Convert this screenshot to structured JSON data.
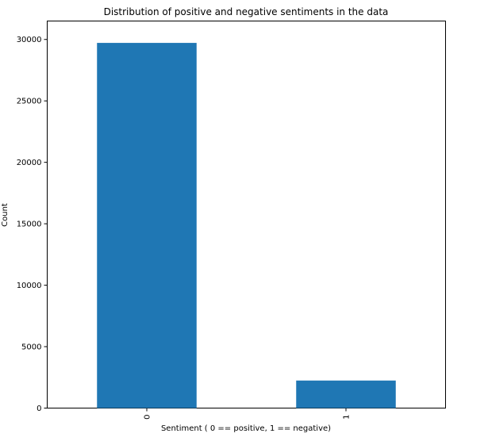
{
  "chart_data": {
    "type": "bar",
    "title": "Distribution of positive and negative sentiments in the data",
    "xlabel": "Sentiment ( 0 == positive, 1 == negative)",
    "ylabel": "Count",
    "categories": [
      "0",
      "1"
    ],
    "values": [
      29720,
      2242
    ],
    "ylim": [
      0,
      31500
    ],
    "yticks": [
      0,
      5000,
      10000,
      15000,
      20000,
      25000,
      30000
    ],
    "ytick_labels": [
      "0",
      "5000",
      "10000",
      "15000",
      "20000",
      "25000",
      "30000"
    ],
    "bar_color": "#1f77b4",
    "grid": false,
    "legend": "none"
  }
}
